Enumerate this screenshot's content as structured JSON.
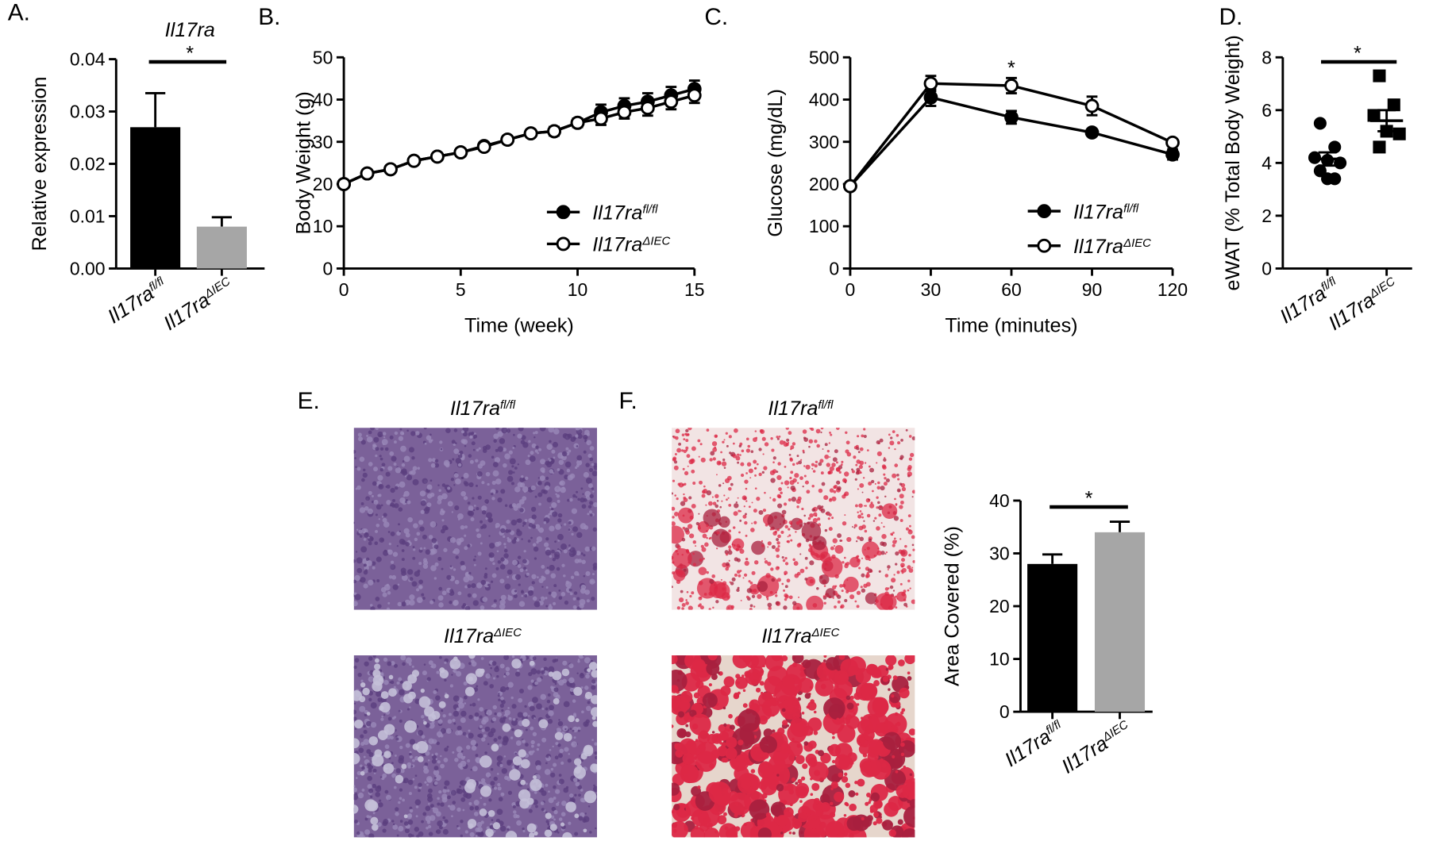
{
  "panel_labels": [
    "A.",
    "B.",
    "C.",
    "D.",
    "E.",
    "F."
  ],
  "chart_data": [
    {
      "type": "bar",
      "title": "Il17ra",
      "ylabel": "Relative expression",
      "categories": [
        {
          "text": "Il17ra",
          "sup": "fl/fl"
        },
        {
          "text": "Il17ra",
          "sup": "ΔIEC"
        }
      ],
      "values": [
        0.027,
        0.008
      ],
      "errors": [
        0.0065,
        0.0018
      ],
      "colors": [
        "#000000",
        "#a6a6a6"
      ],
      "ylim": [
        0,
        0.04
      ],
      "yticks": [
        {
          "value": 0,
          "label": "0.00"
        },
        0.01,
        0.02,
        0.03,
        0.04
      ],
      "significance": "*"
    },
    {
      "type": "line",
      "xlabel": "Time (week)",
      "ylabel": "Body Weight (g)",
      "x": [
        0,
        1,
        2,
        3,
        4,
        5,
        6,
        7,
        8,
        9,
        10,
        11,
        12,
        13,
        14,
        15
      ],
      "series": [
        {
          "name": {
            "text": "Il17ra",
            "sup": "fl/fl"
          },
          "color": "#000000",
          "marker_fill": "#000000",
          "values": [
            20,
            22.5,
            23.5,
            25.5,
            26.5,
            27.5,
            29,
            30.5,
            32,
            32.5,
            34.5,
            37,
            38.5,
            39.5,
            41,
            42.5
          ],
          "errors": [
            0.8,
            0.8,
            0.8,
            0.8,
            0.8,
            0.8,
            0.8,
            0.8,
            0.8,
            1,
            1,
            1.8,
            1.8,
            2,
            2,
            2
          ]
        },
        {
          "name": {
            "text": "Il17ra",
            "sup": "ΔIEC"
          },
          "color": "#000000",
          "marker_fill": "#ffffff",
          "values": [
            20,
            22.5,
            23.5,
            25.5,
            26.5,
            27.5,
            28.8,
            30.5,
            32,
            32.5,
            34.5,
            35.5,
            37,
            38,
            39.5,
            41
          ],
          "errors": [
            0.8,
            0.8,
            0.8,
            0.8,
            0.8,
            0.8,
            0.8,
            0.8,
            0.8,
            1,
            1,
            1.5,
            1.5,
            1.8,
            1.8,
            1.8
          ]
        }
      ],
      "xlim": [
        0,
        15
      ],
      "xticks": [
        0,
        5,
        10,
        15
      ],
      "ylim": [
        0,
        50
      ],
      "yticks": [
        0,
        10,
        20,
        30,
        40,
        50
      ]
    },
    {
      "type": "line",
      "xlabel": "Time (minutes)",
      "ylabel": "Glucose (mg/dL)",
      "x": [
        0,
        30,
        60,
        90,
        120
      ],
      "series": [
        {
          "name": {
            "text": "Il17ra",
            "sup": "fl/fl"
          },
          "color": "#000000",
          "marker_fill": "#000000",
          "values": [
            195,
            405,
            358,
            322,
            270
          ],
          "errors": [
            5,
            20,
            15,
            8,
            12
          ]
        },
        {
          "name": {
            "text": "Il17ra",
            "sup": "ΔIEC"
          },
          "color": "#000000",
          "marker_fill": "#ffffff",
          "values": [
            195,
            438,
            433,
            385,
            298
          ],
          "errors": [
            5,
            18,
            18,
            22,
            8
          ]
        }
      ],
      "xlim": [
        0,
        120
      ],
      "xticks": [
        0,
        30,
        60,
        90,
        120
      ],
      "ylim": [
        0,
        500
      ],
      "yticks": [
        0,
        100,
        200,
        300,
        400,
        500
      ],
      "significance": "*",
      "significance_x": 60
    },
    {
      "type": "scatter",
      "ylabel": "eWAT (% Total Body Weight)",
      "categories": [
        {
          "text": "Il17ra",
          "sup": "fl/fl"
        },
        {
          "text": "Il17ra",
          "sup": "ΔIEC"
        }
      ],
      "series": [
        {
          "marker": "circle",
          "color": "#000000",
          "values": [
            5.5,
            4.6,
            4.2,
            4.1,
            4.0,
            3.7,
            3.4,
            3.4
          ],
          "mean": 4.15,
          "sem": 0.25
        },
        {
          "marker": "square",
          "color": "#000000",
          "values": [
            7.3,
            6.2,
            5.8,
            5.2,
            5.1,
            4.6
          ],
          "mean": 5.6,
          "sem": 0.4
        }
      ],
      "ylim": [
        0,
        8
      ],
      "yticks": [
        0,
        2,
        4,
        6,
        8
      ],
      "significance": "*"
    },
    {
      "type": "bar",
      "ylabel": "Area Covered (%)",
      "categories": [
        {
          "text": "Il17ra",
          "sup": "fl/fl"
        },
        {
          "text": "Il17ra",
          "sup": "ΔIEC"
        }
      ],
      "values": [
        28,
        34
      ],
      "errors": [
        1.8,
        2
      ],
      "colors": [
        "#000000",
        "#a6a6a6"
      ],
      "ylim": [
        0,
        40
      ],
      "yticks": [
        0,
        10,
        20,
        30,
        40
      ],
      "significance": "*"
    }
  ],
  "micrographs": [
    {
      "title": {
        "text": "Il17ra",
        "sup": "fl/fl"
      }
    },
    {
      "title": {
        "text": "Il17ra",
        "sup": "ΔIEC"
      }
    },
    {
      "title": {
        "text": "Il17ra",
        "sup": "fl/fl"
      }
    },
    {
      "title": {
        "text": "Il17ra",
        "sup": "ΔIEC"
      }
    }
  ]
}
